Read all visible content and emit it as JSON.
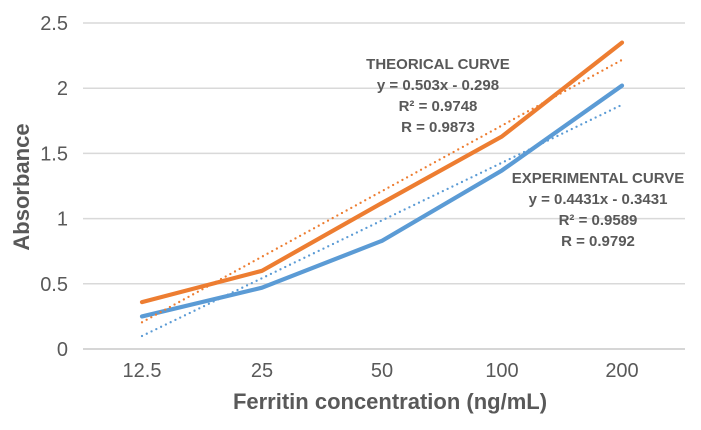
{
  "chart_data": {
    "type": "line",
    "xlabel": "Ferritin concentration (ng/mL)",
    "ylabel": "Absorbance",
    "categories": [
      "12.5",
      "25",
      "50",
      "100",
      "200"
    ],
    "y_ticks": [
      "0",
      "0.5",
      "1",
      "1.5",
      "2",
      "2.5"
    ],
    "ylim": [
      0,
      2.5
    ],
    "grid": true,
    "legend_position": "none",
    "series": [
      {
        "name": "theoretical-curve",
        "style": "solid",
        "color": "#ED7D31",
        "values": [
          0.36,
          0.6,
          1.12,
          1.63,
          2.35
        ]
      },
      {
        "name": "experimental-curve",
        "style": "solid",
        "color": "#5B9BD5",
        "values": [
          0.25,
          0.47,
          0.83,
          1.37,
          2.02
        ]
      },
      {
        "name": "theoretical-trendline",
        "style": "dotted",
        "color": "#ED7D31",
        "equation": "y = 0.503x - 0.298",
        "values": [
          0.205,
          0.708,
          1.211,
          1.714,
          2.217
        ]
      },
      {
        "name": "experimental-trendline",
        "style": "dotted",
        "color": "#5B9BD5",
        "equation": "y = 0.4431x - 0.3431",
        "values": [
          0.1,
          0.543,
          0.986,
          1.429,
          1.873
        ]
      }
    ],
    "annotations": [
      {
        "name": "theoretical",
        "lines": [
          "THEORICAL CURVE",
          "y = 0.503x - 0.298",
          "R² = 0.9748",
          "R = 0.9873"
        ]
      },
      {
        "name": "experimental",
        "lines": [
          "EXPERIMENTAL CURVE",
          "y = 0.4431x - 0.3431",
          "R² = 0.9589",
          "R = 0.9792"
        ]
      }
    ],
    "colors": {
      "theoretical": "#ED7D31",
      "experimental": "#5B9BD5",
      "gridline": "#D9D9D9",
      "axis_line": "#C9C9C9",
      "text": "#595959"
    }
  }
}
